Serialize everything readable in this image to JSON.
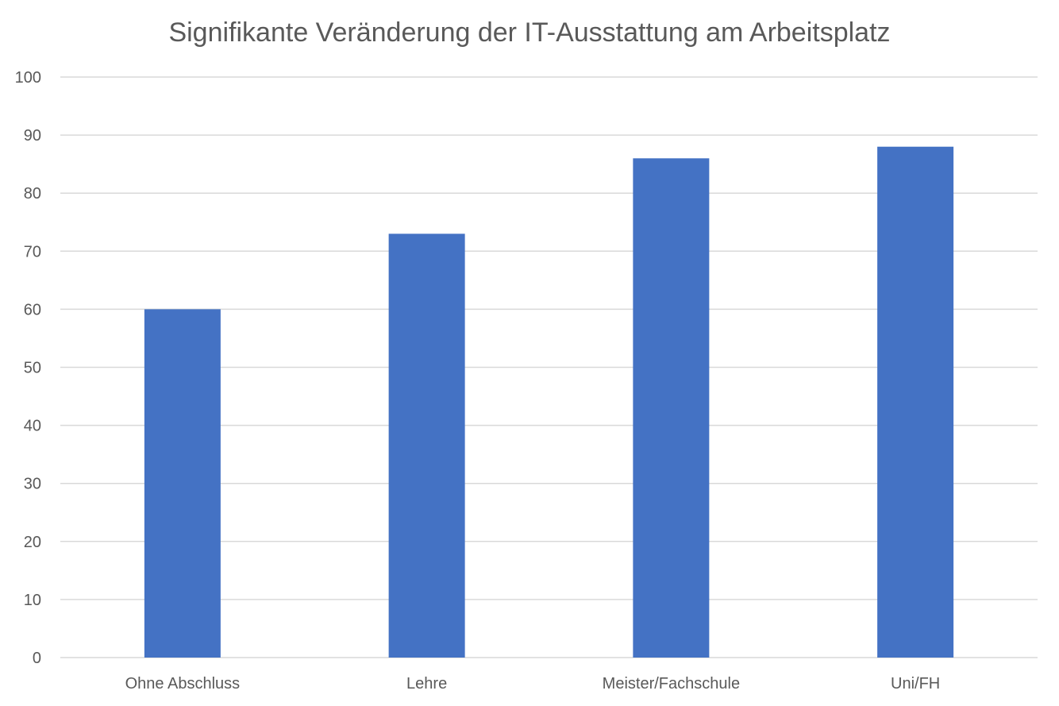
{
  "chart_data": {
    "type": "bar",
    "title": "Signifikante Veränderung der IT-Ausstattung am Arbeitsplatz",
    "categories": [
      "Ohne Abschluss",
      "Lehre",
      "Meister/Fachschule",
      "Uni/FH"
    ],
    "values": [
      60,
      73,
      86,
      88
    ],
    "xlabel": "",
    "ylabel": "",
    "ylim": [
      0,
      100
    ],
    "yticks": [
      0,
      10,
      20,
      30,
      40,
      50,
      60,
      70,
      80,
      90,
      100
    ],
    "grid": true,
    "legend": "none",
    "bar_color": "#4472C4",
    "grid_color": "#D9D9D9",
    "text_color": "#595959"
  }
}
